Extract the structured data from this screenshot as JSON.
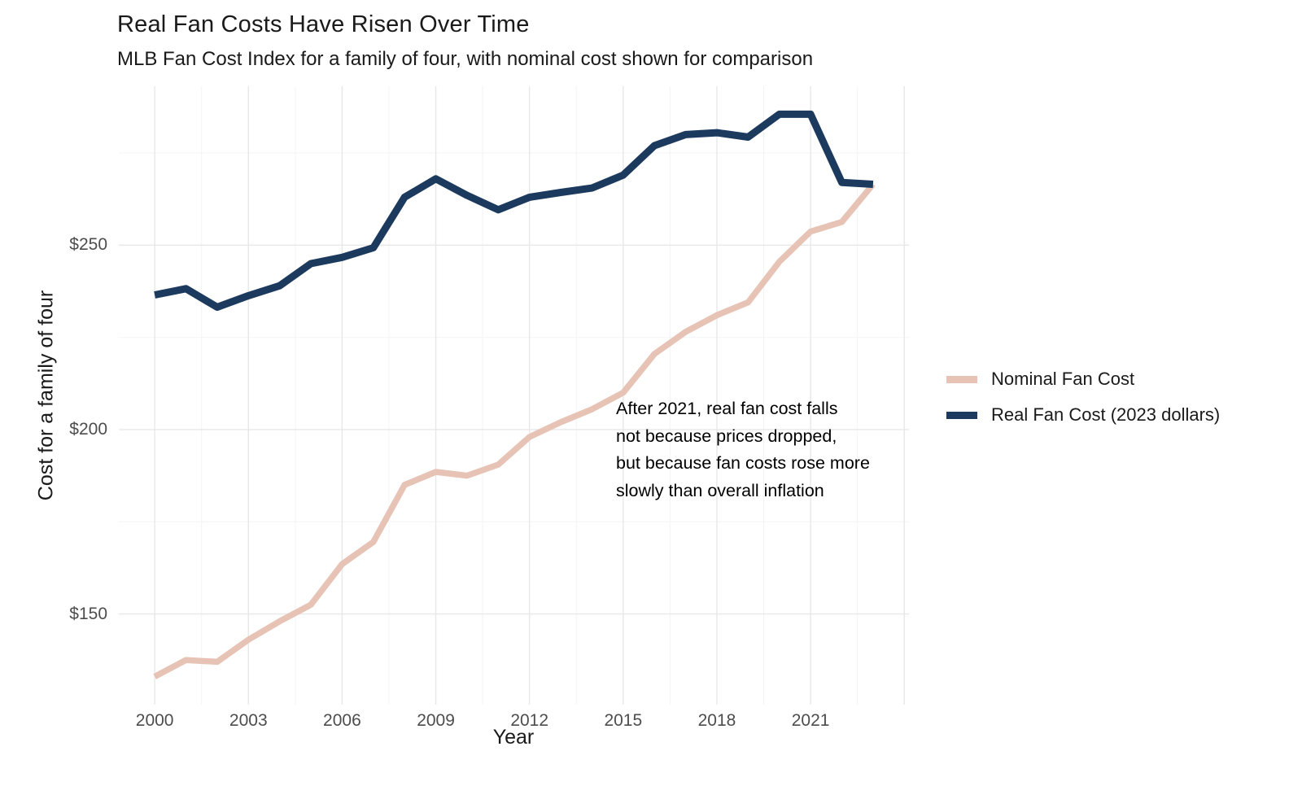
{
  "page": {
    "title": "Real Fan Costs Have Risen Over Time",
    "subtitle": "MLB Fan Cost Index for a family of four, with nominal cost shown for comparison"
  },
  "axes": {
    "x_title": "Year",
    "y_title": "Cost for a family of four",
    "x_tick_labels": [
      "2000",
      "2003",
      "2006",
      "2009",
      "2012",
      "2015",
      "2018",
      "2021"
    ],
    "y_tick_labels": [
      "$150",
      "$200",
      "$250"
    ]
  },
  "legend": {
    "items": [
      {
        "label": "Nominal Fan Cost",
        "color": "#e7c3b5"
      },
      {
        "label": "Real Fan Cost (2023 dollars)",
        "color": "#1c3a5e"
      }
    ]
  },
  "annotation": {
    "lines": [
      "After 2021, real fan cost falls",
      "not because prices dropped,",
      "but because fan costs rose more",
      "slowly than overall inflation"
    ]
  },
  "style": {
    "background": "#ffffff",
    "grid_major_color": "#e8e8e8",
    "grid_minor_color": "#f4f4f4",
    "tick_label_color": "#4d4d4d",
    "text_color": "#1a1a1a",
    "nominal_line_color": "#e7c3b5",
    "real_line_color": "#1c3a5e"
  },
  "chart_data": {
    "type": "line",
    "title": "Real Fan Costs Have Risen Over Time",
    "subtitle": "MLB Fan Cost Index for a family of four, with nominal cost shown for comparison",
    "xlabel": "Year",
    "ylabel": "Cost for a family of four",
    "x": [
      2000,
      2001,
      2002,
      2003,
      2004,
      2005,
      2006,
      2007,
      2008,
      2009,
      2010,
      2011,
      2012,
      2013,
      2014,
      2015,
      2016,
      2017,
      2018,
      2019,
      2020,
      2021,
      2022,
      2023
    ],
    "series": [
      {
        "name": "Nominal Fan Cost",
        "color": "#e7c3b5",
        "stroke_width": 7.5,
        "values": [
          133,
          137.5,
          137,
          143,
          148,
          152.5,
          163.5,
          169.5,
          185,
          188.5,
          187.5,
          190.5,
          198,
          202,
          205.5,
          210,
          220.5,
          226.5,
          231,
          234.5,
          245.5,
          253.7,
          256.3,
          266.5
        ]
      },
      {
        "name": "Real Fan Cost (2023 dollars)",
        "color": "#1c3a5e",
        "stroke_width": 9,
        "values": [
          236.5,
          238.2,
          233.2,
          236.3,
          239,
          245,
          246.7,
          249.3,
          263,
          268,
          263.5,
          259.6,
          263,
          264.3,
          265.5,
          269,
          277,
          280,
          280.5,
          279.3,
          285.5,
          285.5,
          267,
          266.5
        ]
      }
    ],
    "x_ticks": [
      2000,
      2003,
      2006,
      2009,
      2012,
      2015,
      2018,
      2021
    ],
    "y_ticks": [
      150,
      200,
      250
    ],
    "x_major_gridlines": [
      2000,
      2003,
      2006,
      2009,
      2012,
      2015,
      2018,
      2021,
      2024
    ],
    "x_minor_gridlines": [
      2001.5,
      2004.5,
      2007.5,
      2010.5,
      2013.5,
      2016.5,
      2019.5,
      2022.5
    ],
    "y_major_gridlines": [
      150,
      200,
      250
    ],
    "y_minor_gridlines": [
      175,
      225,
      275
    ],
    "xlim": [
      1998.85,
      2024.15
    ],
    "ylim": [
      125.4,
      293.1
    ],
    "grid": "major and minor gridlines, no axis lines (minimal theme)",
    "legend_position": "right",
    "annotation_anchor": {
      "year": 2014.75,
      "value": 207.5
    }
  }
}
